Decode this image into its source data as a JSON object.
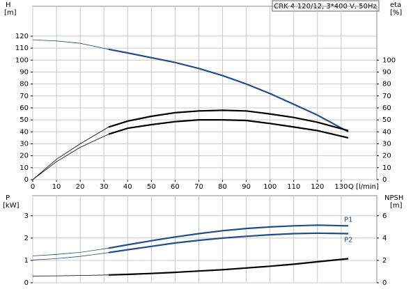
{
  "chart_data": [
    {
      "type": "line",
      "title": "CRK 4-120/12, 3*400 V, 50Hz",
      "y_label": "H",
      "y_unit": "[m]",
      "y2_label": "eta",
      "y2_unit": "[%]",
      "x_label": "Q [l/min]",
      "x": [
        0,
        10,
        20,
        32,
        40,
        50,
        60,
        70,
        80,
        90,
        100,
        110,
        120,
        133
      ],
      "xlim": [
        0,
        145
      ],
      "xticks": [
        0,
        10,
        20,
        30,
        40,
        50,
        60,
        70,
        80,
        90,
        100,
        110,
        120,
        130
      ],
      "ylim": [
        0,
        145
      ],
      "yticks": [
        0,
        10,
        20,
        30,
        40,
        50,
        60,
        70,
        80,
        90,
        100,
        110,
        120
      ],
      "y2lim": [
        0,
        145
      ],
      "y2ticks": [
        0,
        10,
        20,
        30,
        40,
        50,
        60,
        70,
        80,
        90,
        100
      ],
      "grid": true,
      "operating_range": [
        32,
        133
      ],
      "series": [
        {
          "color": "#1f4e8c",
          "values": [
            117,
            116,
            114,
            109,
            106,
            102,
            98,
            93,
            87,
            80,
            72,
            63,
            54,
            40
          ]
        },
        {
          "color": "#000000",
          "axis": "y2",
          "values": [
            0,
            17,
            30,
            44,
            49,
            53,
            56,
            57.5,
            58,
            57.5,
            55,
            52,
            48,
            41
          ]
        },
        {
          "color": "#000000",
          "axis": "y2",
          "values": [
            0,
            15,
            27,
            38,
            43,
            46,
            48.5,
            50,
            50,
            49.5,
            47,
            44,
            41,
            35
          ]
        }
      ]
    },
    {
      "type": "line",
      "y_label": "P",
      "y_unit": "[kW]",
      "y2_label": "NPSH",
      "y2_unit": "[m]",
      "x": [
        0,
        10,
        20,
        32,
        40,
        50,
        60,
        70,
        80,
        90,
        100,
        110,
        120,
        133
      ],
      "xlim": [
        0,
        145
      ],
      "ylim": [
        0,
        3.9
      ],
      "yticks": [
        0,
        1,
        2,
        3
      ],
      "y2lim": [
        0,
        7.8
      ],
      "y2ticks": [
        0,
        2,
        4,
        6
      ],
      "grid": true,
      "operating_range": [
        32,
        133
      ],
      "series": [
        {
          "label": "P1",
          "color": "#1f4e8c",
          "values": [
            1.2,
            1.27,
            1.36,
            1.55,
            1.7,
            1.88,
            2.05,
            2.2,
            2.33,
            2.43,
            2.5,
            2.55,
            2.58,
            2.55
          ]
        },
        {
          "label": "P2",
          "color": "#1f4e8c",
          "values": [
            1.02,
            1.08,
            1.18,
            1.35,
            1.48,
            1.63,
            1.78,
            1.9,
            2.0,
            2.08,
            2.15,
            2.2,
            2.22,
            2.2
          ]
        },
        {
          "color": "#000000",
          "axis": "y2",
          "values": [
            0.6,
            0.62,
            0.65,
            0.7,
            0.75,
            0.83,
            0.93,
            1.05,
            1.17,
            1.32,
            1.48,
            1.66,
            1.88,
            2.15
          ]
        }
      ]
    }
  ]
}
